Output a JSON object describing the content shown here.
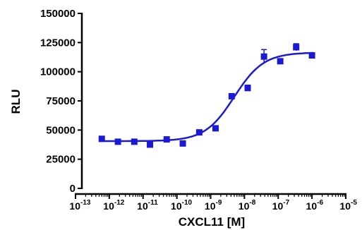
{
  "chart_data": {
    "type": "scatter",
    "title": "",
    "xlabel": "CXCL11 [M]",
    "ylabel": "RLU",
    "x_scale": "log",
    "xlim": [
      1e-13,
      1e-05
    ],
    "ylim": [
      0,
      150000
    ],
    "y_ticks": [
      0,
      25000,
      50000,
      75000,
      100000,
      125000,
      150000
    ],
    "y_tick_labels": [
      "0",
      "25000",
      "50000",
      "75000",
      "100000",
      "125000",
      "150000"
    ],
    "x_tick_bases": [
      "10",
      "10",
      "10",
      "10",
      "10",
      "10",
      "10",
      "10",
      "10"
    ],
    "x_tick_exponents": [
      "-13",
      "-12",
      "-11",
      "-10",
      "-9",
      "-8",
      "-7",
      "-6",
      "-5"
    ],
    "x_tick_values": [
      1e-13,
      1e-12,
      1e-11,
      1e-10,
      1e-09,
      1e-08,
      1e-07,
      1e-06,
      1e-05
    ],
    "color": "#1a1ad6",
    "series": [
      {
        "points": [
          {
            "x": 6e-13,
            "y": 42500,
            "err": 1200
          },
          {
            "x": 1.8e-12,
            "y": 40000,
            "err": 1200
          },
          {
            "x": 5.5e-12,
            "y": 40000,
            "err": 1200
          },
          {
            "x": 1.6e-11,
            "y": 37500,
            "err": 1200
          },
          {
            "x": 5e-11,
            "y": 42000,
            "err": 1200
          },
          {
            "x": 1.5e-10,
            "y": 38500,
            "err": 1500
          },
          {
            "x": 4.6e-10,
            "y": 48000,
            "err": 1500
          },
          {
            "x": 1.4e-09,
            "y": 51500,
            "err": 2000
          },
          {
            "x": 4.2e-09,
            "y": 79000,
            "err": 1500
          },
          {
            "x": 1.25e-08,
            "y": 86000,
            "err": 2500
          },
          {
            "x": 3.8e-08,
            "y": 113000,
            "err": 6000
          },
          {
            "x": 1.15e-07,
            "y": 109000,
            "err": 2000
          },
          {
            "x": 3.4e-07,
            "y": 121000,
            "err": 3000
          },
          {
            "x": 1e-06,
            "y": 114000,
            "err": 2000
          }
        ]
      }
    ],
    "fit": {
      "type": "sigmoid",
      "bottom": 40500,
      "top": 116500,
      "log_ec50": -8.3,
      "hill": 1.0,
      "x_from": 5e-13,
      "x_to": 1.1e-06
    }
  }
}
